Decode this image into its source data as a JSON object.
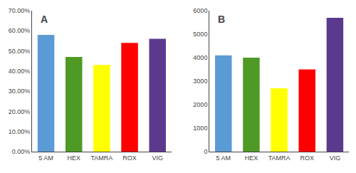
{
  "chart_data": [
    {
      "type": "bar",
      "annotations": [
        "A"
      ],
      "categories": [
        "5 AM",
        "HEX",
        "TAMRA",
        "ROX",
        "VIG"
      ],
      "values": [
        0.58,
        0.47,
        0.43,
        0.54,
        0.56
      ],
      "colors": [
        "#5B9BD5",
        "#4E9A25",
        "#FFFF00",
        "#FF0000",
        "#5B3A8E"
      ],
      "ylim": [
        0,
        0.7
      ],
      "yticks": [
        {
          "value": 0.0,
          "label": "0.00%"
        },
        {
          "value": 0.1,
          "label": "10.00%"
        },
        {
          "value": 0.2,
          "label": "20.00%"
        },
        {
          "value": 0.3,
          "label": "30.00%"
        },
        {
          "value": 0.4,
          "label": "40.00%"
        },
        {
          "value": 0.5,
          "label": "50.00%"
        },
        {
          "value": 0.6,
          "label": "60.00%"
        },
        {
          "value": 0.7,
          "label": "70.00%"
        }
      ],
      "grid": false
    },
    {
      "type": "bar",
      "annotations": [
        "B"
      ],
      "categories": [
        "5 AM",
        "HEX",
        "TAMRA",
        "ROX",
        "VIG"
      ],
      "values": [
        4100,
        4000,
        2700,
        3500,
        5700
      ],
      "colors": [
        "#5B9BD5",
        "#4E9A25",
        "#FFFF00",
        "#FF0000",
        "#5B3A8E"
      ],
      "ylim": [
        0,
        6000
      ],
      "yticks": [
        0,
        1000,
        2000,
        3000,
        4000,
        5000,
        6000
      ],
      "grid": false
    }
  ]
}
